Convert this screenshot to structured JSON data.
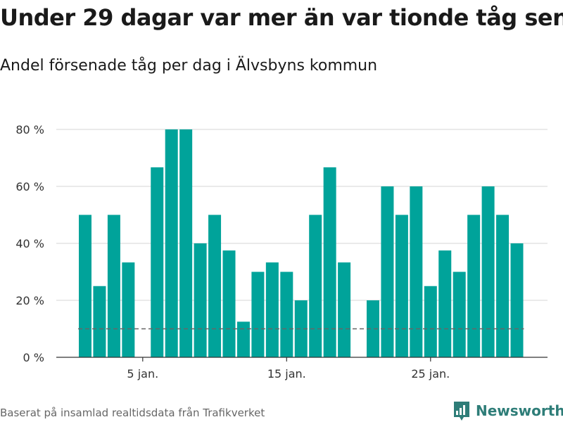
{
  "title": "Under 29 dagar var mer än var tionde tåg sent",
  "subtitle": "Andel försenade tåg per dag i Älvsbyns kommun",
  "footer": {
    "source": "Baserat på insamlad realtidsdata från Trafikverket",
    "brand": "Newsworthy"
  },
  "colors": {
    "bar": "#00a39a",
    "grid": "#dddddd",
    "axis": "#333333",
    "reference": "#666666",
    "brand": "#2e7d78"
  },
  "chart_data": {
    "type": "bar",
    "x_unit": "day of January",
    "x": [
      1,
      2,
      3,
      4,
      5,
      6,
      7,
      8,
      9,
      10,
      11,
      12,
      13,
      14,
      15,
      16,
      17,
      18,
      19,
      20,
      21,
      22,
      23,
      24,
      25,
      26,
      27,
      28,
      29,
      30,
      31
    ],
    "values": [
      50,
      25,
      50,
      33.3,
      null,
      66.7,
      80,
      80,
      40,
      50,
      37.5,
      12.5,
      30,
      33.3,
      30,
      20,
      50,
      66.7,
      33.3,
      null,
      20,
      60,
      50,
      60,
      25,
      37.5,
      30,
      50,
      60,
      50,
      40
    ],
    "xticks": [
      5,
      15,
      25
    ],
    "xtick_labels": [
      "5 jan.",
      "15 jan.",
      "25 jan."
    ],
    "yticks": [
      0,
      20,
      40,
      60,
      80
    ],
    "ytick_labels": [
      "0 %",
      "20 %",
      "40 %",
      "60 %",
      "80 %"
    ],
    "ylim": [
      0,
      80
    ],
    "reference_line": 10,
    "grid": true
  }
}
